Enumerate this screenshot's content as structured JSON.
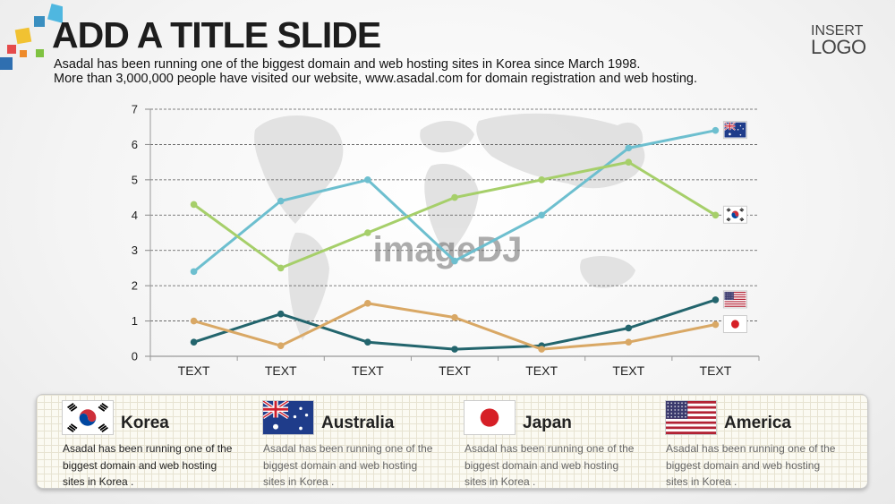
{
  "slide": {
    "title": "ADD A TITLE SLIDE",
    "subtitle_line1": "Asadal has been running one of the biggest domain and web hosting sites in Korea since March 1998.",
    "subtitle_line2": "More than 3,000,000 people have visited our website,  www.asadal.com for domain registration and web hosting.",
    "logo_line1": "INSERT",
    "logo_line2": "LOGO",
    "watermark": "imageDJ"
  },
  "chart_data": {
    "type": "line",
    "categories": [
      "TEXT",
      "TEXT",
      "TEXT",
      "TEXT",
      "TEXT",
      "TEXT",
      "TEXT"
    ],
    "ylim": [
      0,
      7
    ],
    "yticks": [
      0,
      1,
      2,
      3,
      4,
      5,
      6,
      7
    ],
    "grid": true,
    "series": [
      {
        "flag": "australia",
        "color": "#6dbfcf",
        "values": [
          2.4,
          4.4,
          5.0,
          2.7,
          4.0,
          5.9,
          6.4
        ]
      },
      {
        "flag": "korea",
        "color": "#a6cf6a",
        "values": [
          4.3,
          2.5,
          3.5,
          4.5,
          5.0,
          5.5,
          4.0
        ]
      },
      {
        "flag": "america",
        "color": "#23656d",
        "values": [
          0.4,
          1.2,
          0.4,
          0.2,
          0.3,
          0.8,
          1.6
        ]
      },
      {
        "flag": "japan",
        "color": "#d9a865",
        "values": [
          1.0,
          0.3,
          1.5,
          1.1,
          0.2,
          0.4,
          0.9
        ]
      }
    ]
  },
  "cards": [
    {
      "flag": "korea",
      "name": "Korea",
      "description": "Asadal has been running one of the biggest domain and web hosting sites in Korea ."
    },
    {
      "flag": "australia",
      "name": "Australia",
      "description": "Asadal has been running one of the biggest domain and web hosting sites in Korea ."
    },
    {
      "flag": "japan",
      "name": "Japan",
      "description": "Asadal has been running one of the biggest domain and web hosting sites in Korea ."
    },
    {
      "flag": "america",
      "name": "America",
      "description": "Asadal has been running one of the biggest domain and web hosting sites in Korea ."
    }
  ]
}
